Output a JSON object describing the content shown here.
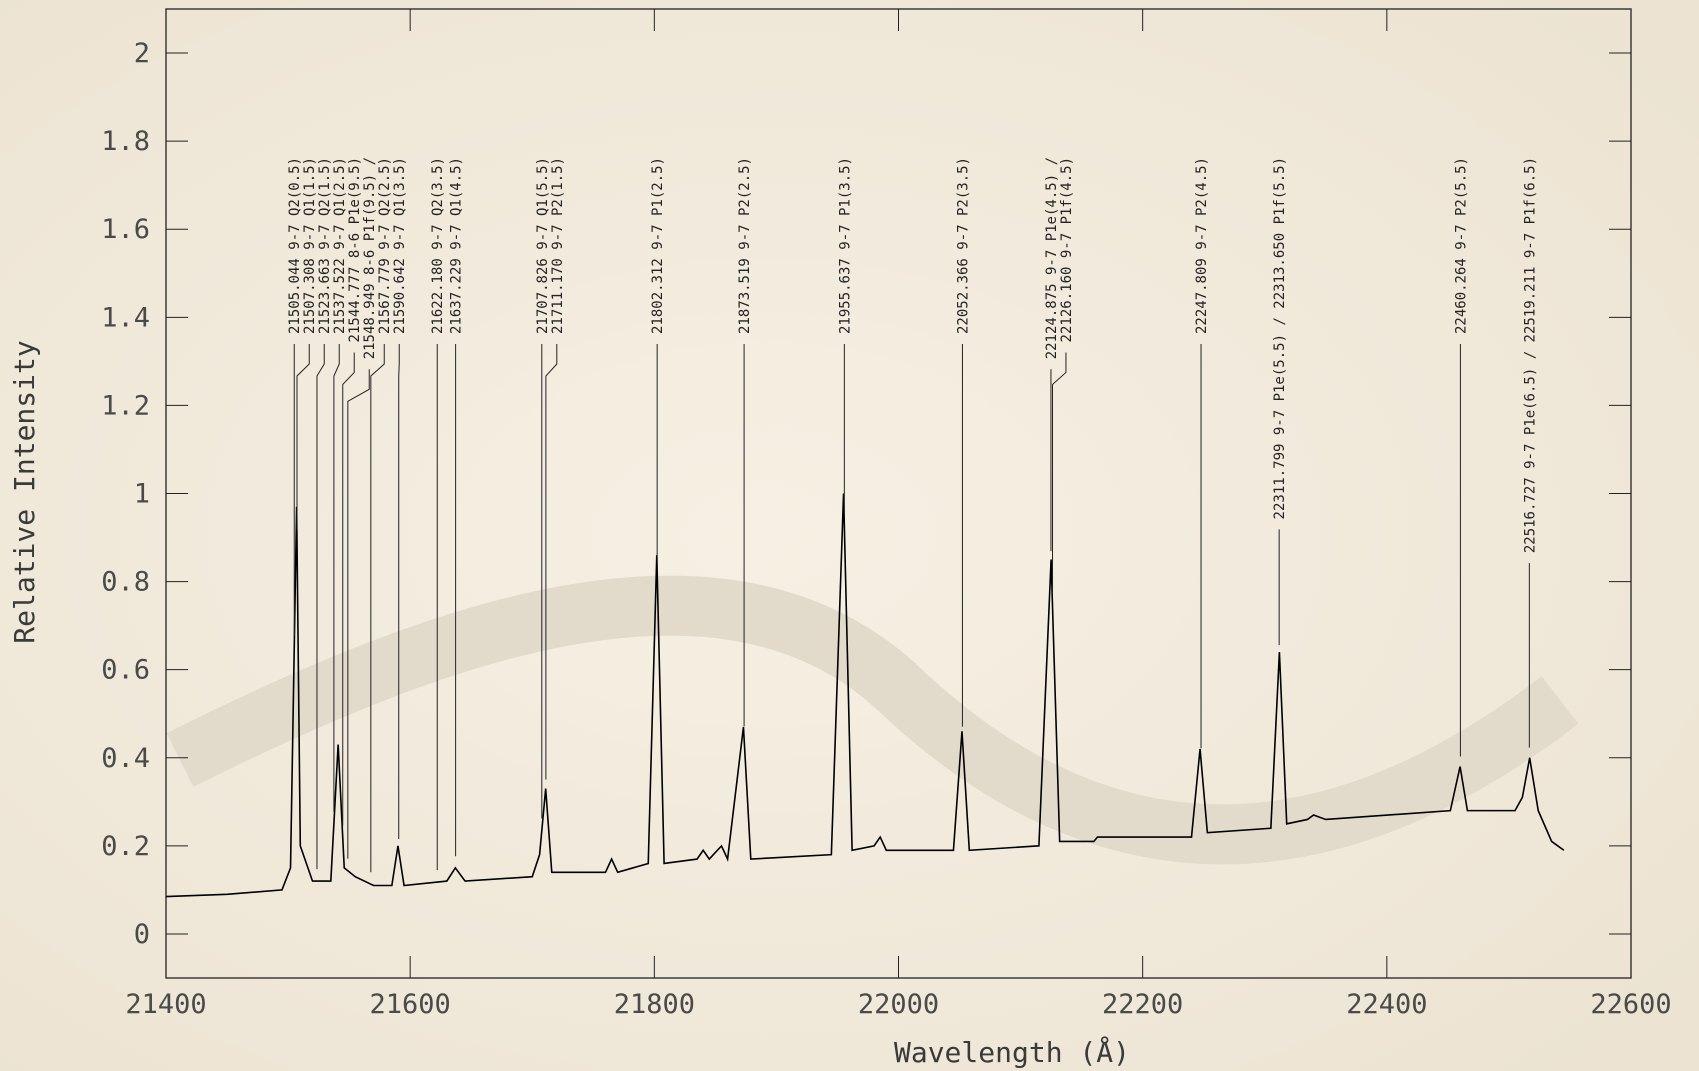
{
  "chart_data": {
    "type": "line",
    "x_label": "Wavelength (Å)",
    "y_label": "Relative Intensity",
    "color": "#000000",
    "xlim": [
      21400,
      22600
    ],
    "ylim": [
      -0.1,
      2.1
    ],
    "xticks": [
      21400,
      21600,
      21800,
      22000,
      22200,
      22400,
      22600
    ],
    "yticks": [
      0,
      0.2,
      0.4,
      0.6,
      0.8,
      1,
      1.2,
      1.4,
      1.6,
      1.8,
      2
    ],
    "x": [
      21400,
      21450,
      21495,
      21502,
      21507,
      21510,
      21520,
      21535,
      21541,
      21546,
      21555,
      21570,
      21585,
      21590,
      21595,
      21630,
      21637,
      21645,
      21700,
      21706,
      21711,
      21716,
      21760,
      21765,
      21770,
      21795,
      21802,
      21808,
      21835,
      21840,
      21845,
      21855,
      21860,
      21873,
      21879,
      21945,
      21955,
      21962,
      21980,
      21985,
      21990,
      22045,
      22052,
      22058,
      22115,
      22125,
      22132,
      22160,
      22163,
      22240,
      22247,
      22253,
      22305,
      22312,
      22318,
      22335,
      22340,
      22350,
      22452,
      22460,
      22466,
      22505,
      22511,
      22517,
      22524,
      22535,
      22545
    ],
    "values": [
      0.085,
      0.09,
      0.1,
      0.15,
      0.97,
      0.2,
      0.12,
      0.12,
      0.43,
      0.15,
      0.13,
      0.11,
      0.11,
      0.2,
      0.11,
      0.12,
      0.15,
      0.12,
      0.13,
      0.18,
      0.33,
      0.14,
      0.14,
      0.17,
      0.14,
      0.16,
      0.86,
      0.16,
      0.17,
      0.19,
      0.17,
      0.2,
      0.17,
      0.47,
      0.17,
      0.18,
      1.0,
      0.19,
      0.2,
      0.22,
      0.19,
      0.19,
      0.46,
      0.19,
      0.2,
      0.85,
      0.21,
      0.21,
      0.22,
      0.22,
      0.42,
      0.23,
      0.24,
      0.64,
      0.25,
      0.26,
      0.27,
      0.26,
      0.28,
      0.38,
      0.28,
      0.28,
      0.31,
      0.4,
      0.28,
      0.21,
      0.19
    ],
    "annotations": [
      {
        "text": "21505.044 9-7 Q2(0.5)",
        "x": 21505.044
      },
      {
        "text": "21507.308 9-7 Q1(1.5)",
        "x": 21507.308
      },
      {
        "text": "21523.663 9-7 Q2(1.5)",
        "x": 21523.663
      },
      {
        "text": "21537.522 9-7 Q1(2.5)",
        "x": 21537.522
      },
      {
        "text": "21544.777 8-6 P1e(9.5)",
        "x": 21544.777
      },
      {
        "text": "21548.949 8-6 P1f(9.5) /",
        "x": 21548.949
      },
      {
        "text": "21567.779 9-7 Q2(2.5)",
        "x": 21567.779
      },
      {
        "text": "21590.642 9-7 Q1(3.5)",
        "x": 21590.642
      },
      {
        "text": "21622.180 9-7 Q2(3.5)",
        "x": 21622.18
      },
      {
        "text": "21637.229 9-7 Q1(4.5)",
        "x": 21637.229
      },
      {
        "text": "21707.826 9-7 Q1(5.5)",
        "x": 21707.826
      },
      {
        "text": "21711.170 9-7 P2(1.5)",
        "x": 21711.17
      },
      {
        "text": "21802.312 9-7 P1(2.5)",
        "x": 21802.312
      },
      {
        "text": "21873.519 9-7 P2(2.5)",
        "x": 21873.519
      },
      {
        "text": "21955.637 9-7 P1(3.5)",
        "x": 21955.637
      },
      {
        "text": "22052.366 9-7 P2(3.5)",
        "x": 22052.366
      },
      {
        "text": "22124.875 9-7 P1e(4.5) /",
        "x": 22124.875
      },
      {
        "text": "22126.160 9-7 P1f(4.5)",
        "x": 22126.16
      },
      {
        "text": "22247.809 9-7 P2(4.5)",
        "x": 22247.809
      },
      {
        "text": "22311.799 9-7 P1e(5.5) / 22313.650 P1f(5.5)",
        "x": 22311.799
      },
      {
        "text": "22460.264 9-7 P2(5.5)",
        "x": 22460.264
      },
      {
        "text": "22516.727 9-7 P1e(6.5) / 22519.211 9-7 P1f(6.5)",
        "x": 22516.727
      }
    ]
  }
}
